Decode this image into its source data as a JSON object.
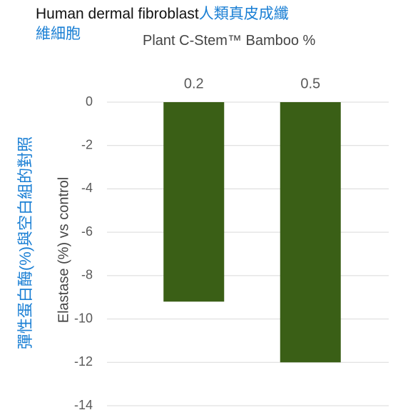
{
  "chart_data": {
    "type": "bar",
    "title": "Human dermal fibroblast",
    "title_zh": "人類真皮成纖維細胞",
    "subtitle": "Plant C-Stem™ Bamboo %",
    "y_label": "Elastase (%) vs control",
    "y_label_zh": "彈性蛋白酶(%)與空白組的對照",
    "categories": [
      "0.2",
      "0.5"
    ],
    "values": [
      -9.2,
      -12.0
    ],
    "color": "#3a5f16",
    "ylim": [
      -14,
      0
    ],
    "yticks": [
      0,
      -2,
      -4,
      -6,
      -8,
      -10,
      -12,
      -14
    ],
    "grid": true
  }
}
